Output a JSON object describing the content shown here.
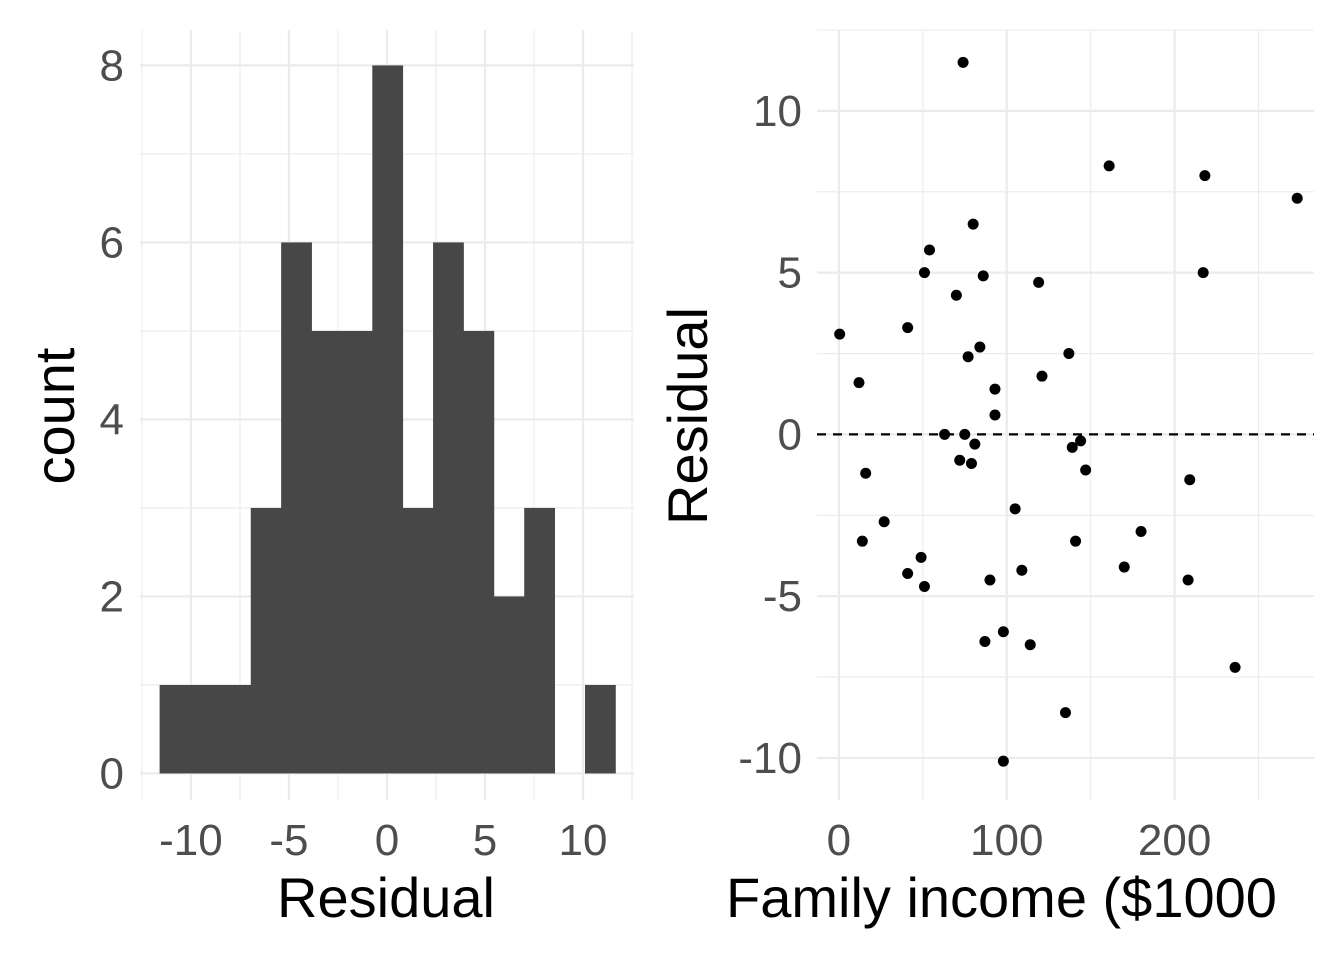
{
  "chart_data": [
    {
      "type": "bar",
      "subtype": "histogram",
      "xlabel": "Residual",
      "ylabel": "count",
      "xlim": [
        -12.6,
        12.6
      ],
      "ylim": [
        -0.3,
        8.4
      ],
      "x_ticks": [
        -10,
        -5,
        0,
        5,
        10
      ],
      "x_tick_labels": [
        "-10",
        "-5",
        "0",
        "5",
        "10"
      ],
      "y_ticks": [
        0,
        2,
        4,
        6,
        8
      ],
      "y_tick_labels": [
        "0",
        "2",
        "4",
        "6",
        "8"
      ],
      "bins": [
        {
          "x0": -11.6,
          "x1": -10.05,
          "count": 1
        },
        {
          "x0": -10.05,
          "x1": -8.5,
          "count": 1
        },
        {
          "x0": -8.5,
          "x1": -6.95,
          "count": 1
        },
        {
          "x0": -6.95,
          "x1": -5.4,
          "count": 3
        },
        {
          "x0": -5.4,
          "x1": -3.85,
          "count": 6
        },
        {
          "x0": -3.85,
          "x1": -2.3,
          "count": 5
        },
        {
          "x0": -2.3,
          "x1": -0.75,
          "count": 5
        },
        {
          "x0": -0.75,
          "x1": 0.8,
          "count": 8
        },
        {
          "x0": 0.8,
          "x1": 2.35,
          "count": 3
        },
        {
          "x0": 2.35,
          "x1": 3.9,
          "count": 6
        },
        {
          "x0": 3.9,
          "x1": 5.45,
          "count": 5
        },
        {
          "x0": 5.45,
          "x1": 7.0,
          "count": 2
        },
        {
          "x0": 7.0,
          "x1": 8.55,
          "count": 3
        },
        {
          "x0": 8.55,
          "x1": 10.1,
          "count": 0
        },
        {
          "x0": 10.1,
          "x1": 11.65,
          "count": 1
        }
      ],
      "bar_color": "#474747",
      "grid": true
    },
    {
      "type": "scatter",
      "xlabel": "Family income ($1000",
      "ylabel": "Residual",
      "xlim": [
        -13,
        283
      ],
      "ylim": [
        -11.3,
        12.5
      ],
      "x_ticks": [
        0,
        100,
        200
      ],
      "x_tick_labels": [
        "0",
        "100",
        "200"
      ],
      "y_ticks": [
        -10,
        -5,
        0,
        5,
        10
      ],
      "y_tick_labels": [
        "-10",
        "-5",
        "0",
        "5",
        "10"
      ],
      "reference_line": {
        "y": 0,
        "style": "dashed"
      },
      "point_color": "#000000",
      "grid": true,
      "points": [
        {
          "x": 0.5,
          "y": 3.1
        },
        {
          "x": 12,
          "y": 1.6
        },
        {
          "x": 14,
          "y": -3.3
        },
        {
          "x": 16,
          "y": -1.2
        },
        {
          "x": 27,
          "y": -2.7
        },
        {
          "x": 41,
          "y": 3.3
        },
        {
          "x": 41,
          "y": -4.3
        },
        {
          "x": 49,
          "y": -3.8
        },
        {
          "x": 51,
          "y": 5.0
        },
        {
          "x": 51,
          "y": -4.7
        },
        {
          "x": 54,
          "y": 5.7
        },
        {
          "x": 63,
          "y": 0.0
        },
        {
          "x": 70,
          "y": 4.3
        },
        {
          "x": 72,
          "y": -0.8
        },
        {
          "x": 74,
          "y": 11.5
        },
        {
          "x": 75,
          "y": 0.0
        },
        {
          "x": 77,
          "y": 2.4
        },
        {
          "x": 79,
          "y": -0.9
        },
        {
          "x": 80,
          "y": 6.5
        },
        {
          "x": 81,
          "y": -0.3
        },
        {
          "x": 84,
          "y": 2.7
        },
        {
          "x": 86,
          "y": 4.9
        },
        {
          "x": 87,
          "y": -6.4
        },
        {
          "x": 90,
          "y": -4.5
        },
        {
          "x": 93,
          "y": 1.4
        },
        {
          "x": 93,
          "y": 0.6
        },
        {
          "x": 98,
          "y": -6.1
        },
        {
          "x": 98,
          "y": -10.1
        },
        {
          "x": 105,
          "y": -2.3
        },
        {
          "x": 109,
          "y": -4.2
        },
        {
          "x": 114,
          "y": -6.5
        },
        {
          "x": 119,
          "y": 4.7
        },
        {
          "x": 121,
          "y": 1.8
        },
        {
          "x": 135,
          "y": -8.6
        },
        {
          "x": 137,
          "y": 2.5
        },
        {
          "x": 139,
          "y": -0.4
        },
        {
          "x": 141,
          "y": -3.3
        },
        {
          "x": 144,
          "y": -0.2
        },
        {
          "x": 147,
          "y": -1.1
        },
        {
          "x": 161,
          "y": 8.3
        },
        {
          "x": 170,
          "y": -4.1
        },
        {
          "x": 180,
          "y": -3.0
        },
        {
          "x": 208,
          "y": -4.5
        },
        {
          "x": 209,
          "y": -1.4
        },
        {
          "x": 217,
          "y": 5.0
        },
        {
          "x": 218,
          "y": 8.0
        },
        {
          "x": 236,
          "y": -7.2
        },
        {
          "x": 273,
          "y": 7.3
        }
      ]
    }
  ]
}
